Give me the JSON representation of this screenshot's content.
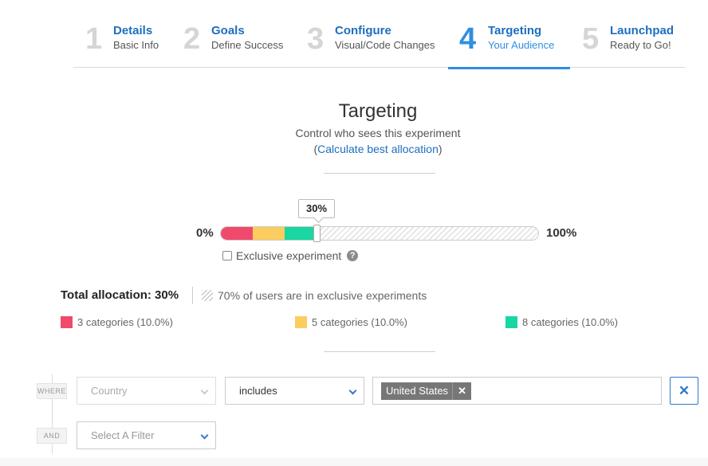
{
  "stepper": {
    "steps": [
      {
        "num": "1",
        "title": "Details",
        "sub": "Basic Info"
      },
      {
        "num": "2",
        "title": "Goals",
        "sub": "Define Success"
      },
      {
        "num": "3",
        "title": "Configure",
        "sub": "Visual/Code Changes"
      },
      {
        "num": "4",
        "title": "Targeting",
        "sub": "Your Audience"
      },
      {
        "num": "5",
        "title": "Launchpad",
        "sub": "Ready to Go!"
      }
    ],
    "active_index": 3
  },
  "header": {
    "title": "Targeting",
    "subtitle": "Control who sees this experiment",
    "link_open": "(",
    "link": "Calculate best allocation",
    "link_close": ")"
  },
  "allocation": {
    "tooltip": "30%",
    "min_label": "0%",
    "max_label": "100%",
    "value_percent": 30,
    "segments": [
      {
        "color": "#ef4a6c",
        "percent": 10
      },
      {
        "color": "#fbcd5f",
        "percent": 10
      },
      {
        "color": "#19d6a2",
        "percent": 10
      }
    ],
    "exclusive_label": "Exclusive experiment",
    "exclusive_checked": false,
    "total_label": "Total allocation: 30%",
    "exclusive_users": "70% of users are in exclusive experiments",
    "legend": [
      {
        "label": "3 categories (10.0%)",
        "color": "#ef4a6c"
      },
      {
        "label": "5 categories (10.0%)",
        "color": "#fbcd5f"
      },
      {
        "label": "8 categories (10.0%)",
        "color": "#19d6a2"
      }
    ]
  },
  "filters": {
    "where_tag": "WHERE",
    "and_tag": "AND",
    "field_value": "Country",
    "operator_value": "includes",
    "chip_value": "United States",
    "chip_remove": "✕",
    "remove_row": "✕",
    "new_filter_placeholder": "Select A Filter"
  }
}
